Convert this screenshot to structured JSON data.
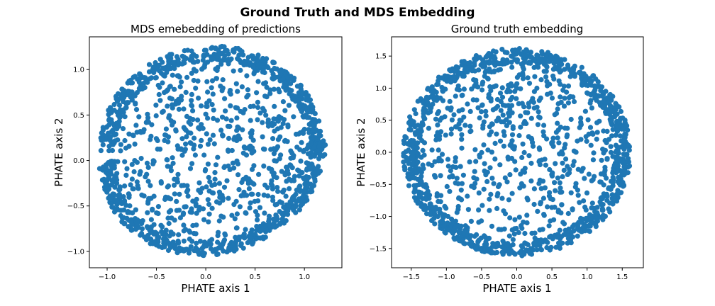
{
  "figure_title": "Ground Truth and MDS Embedding",
  "chart_data": [
    {
      "type": "scatter",
      "title": "MDS emebedding of predictions",
      "xlabel": "PHATE axis 1",
      "ylabel": "PHATE axis 2",
      "xlim": [
        -1.18,
        1.38
      ],
      "ylim": [
        -1.18,
        1.36
      ],
      "xticks": [
        -1.0,
        -0.5,
        0.0,
        0.5,
        1.0
      ],
      "xtick_labels": [
        "−1.0",
        "−0.5",
        "0.0",
        "0.5",
        "1.0"
      ],
      "yticks": [
        -1.0,
        -0.5,
        0.0,
        0.5,
        1.0
      ],
      "ytick_labels": [
        "−1.0",
        "−0.5",
        "0.0",
        "0.5",
        "1.0"
      ],
      "grid": false,
      "legend": "none",
      "color": "#1f77b4",
      "shape": {
        "center_x": 0.08,
        "center_y": 0.1,
        "rx_left": 1.16,
        "rx_right": 1.14,
        "ry_top": 1.16,
        "ry_bottom": 1.14,
        "skew": 0.12
      },
      "n_points": 1500
    },
    {
      "type": "scatter",
      "title": "Ground truth embedding",
      "xlabel": "PHATE axis 1",
      "ylabel": "PHATE axis 2",
      "xlim": [
        -1.78,
        1.8
      ],
      "ylim": [
        -1.8,
        1.8
      ],
      "xticks": [
        -1.5,
        -1.0,
        -0.5,
        0.0,
        0.5,
        1.0,
        1.5
      ],
      "xtick_labels": [
        "−1.5",
        "−1.0",
        "−0.5",
        "0.0",
        "0.5",
        "1.0",
        "1.5"
      ],
      "yticks": [
        -1.5,
        -1.0,
        -0.5,
        0.0,
        0.5,
        1.0,
        1.5
      ],
      "ytick_labels": [
        "−1.5",
        "−1.0",
        "−0.5",
        "0.0",
        "0.5",
        "1.0",
        "1.5"
      ],
      "grid": false,
      "legend": "none",
      "color": "#1f77b4",
      "shape": {
        "center_x": 0.0,
        "center_y": 0.0,
        "rx_left": 1.62,
        "rx_right": 1.62,
        "ry_top": 1.62,
        "ry_bottom": 1.62,
        "skew": 0.0
      },
      "n_points": 1500
    }
  ]
}
